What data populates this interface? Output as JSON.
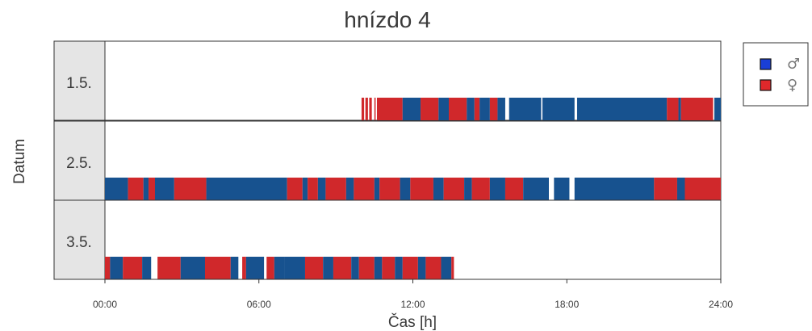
{
  "chart_data": {
    "type": "timeline",
    "title": "hnízdo 4",
    "xlabel": "Čas [h]",
    "ylabel": "Datum",
    "x_unit": "hours",
    "xlim": [
      0,
      24
    ],
    "x_ticks": [
      {
        "value": 0,
        "label": "00:00"
      },
      {
        "value": 6,
        "label": "06:00"
      },
      {
        "value": 12,
        "label": "12:00"
      },
      {
        "value": 18,
        "label": "18:00"
      },
      {
        "value": 24,
        "label": "24:00"
      }
    ],
    "legend_position": "top-right",
    "series": [
      {
        "key": "male",
        "legend_label": "♂",
        "color": "#17528f",
        "legend_color": "#1a3fd6"
      },
      {
        "key": "female",
        "legend_label": "♀",
        "color": "#d0282b",
        "legend_color": "#e0282b"
      }
    ],
    "rows": [
      {
        "label": "1.5.",
        "segments": [
          {
            "start": 10.0,
            "end": 10.1,
            "series": "female"
          },
          {
            "start": 10.15,
            "end": 10.25,
            "series": "female"
          },
          {
            "start": 10.3,
            "end": 10.4,
            "series": "female"
          },
          {
            "start": 10.5,
            "end": 10.55,
            "series": "female"
          },
          {
            "start": 10.6,
            "end": 11.6,
            "series": "female"
          },
          {
            "start": 11.6,
            "end": 12.3,
            "series": "male"
          },
          {
            "start": 12.3,
            "end": 13.0,
            "series": "female"
          },
          {
            "start": 13.0,
            "end": 13.4,
            "series": "male"
          },
          {
            "start": 13.4,
            "end": 14.1,
            "series": "female"
          },
          {
            "start": 14.1,
            "end": 14.4,
            "series": "male"
          },
          {
            "start": 14.4,
            "end": 14.6,
            "series": "female"
          },
          {
            "start": 14.6,
            "end": 15.0,
            "series": "male"
          },
          {
            "start": 15.0,
            "end": 15.3,
            "series": "female"
          },
          {
            "start": 15.3,
            "end": 15.6,
            "series": "male"
          },
          {
            "start": 15.75,
            "end": 17.0,
            "series": "male"
          },
          {
            "start": 17.05,
            "end": 18.3,
            "series": "male"
          },
          {
            "start": 18.4,
            "end": 21.9,
            "series": "male"
          },
          {
            "start": 21.9,
            "end": 22.35,
            "series": "female"
          },
          {
            "start": 22.35,
            "end": 22.45,
            "series": "male"
          },
          {
            "start": 22.45,
            "end": 23.7,
            "series": "female"
          },
          {
            "start": 23.75,
            "end": 24.0,
            "series": "male"
          }
        ]
      },
      {
        "label": "2.5.",
        "segments": [
          {
            "start": 0.0,
            "end": 0.9,
            "series": "male"
          },
          {
            "start": 0.9,
            "end": 1.5,
            "series": "female"
          },
          {
            "start": 1.5,
            "end": 1.7,
            "series": "male"
          },
          {
            "start": 1.7,
            "end": 1.95,
            "series": "female"
          },
          {
            "start": 1.95,
            "end": 2.7,
            "series": "male"
          },
          {
            "start": 2.7,
            "end": 3.95,
            "series": "female"
          },
          {
            "start": 3.95,
            "end": 7.1,
            "series": "male"
          },
          {
            "start": 7.1,
            "end": 7.7,
            "series": "female"
          },
          {
            "start": 7.7,
            "end": 7.9,
            "series": "male"
          },
          {
            "start": 7.9,
            "end": 8.3,
            "series": "female"
          },
          {
            "start": 8.3,
            "end": 8.6,
            "series": "male"
          },
          {
            "start": 8.6,
            "end": 9.4,
            "series": "female"
          },
          {
            "start": 9.4,
            "end": 9.7,
            "series": "male"
          },
          {
            "start": 9.7,
            "end": 10.5,
            "series": "female"
          },
          {
            "start": 10.5,
            "end": 10.7,
            "series": "male"
          },
          {
            "start": 10.7,
            "end": 11.5,
            "series": "female"
          },
          {
            "start": 11.5,
            "end": 11.9,
            "series": "male"
          },
          {
            "start": 11.9,
            "end": 12.8,
            "series": "female"
          },
          {
            "start": 12.8,
            "end": 13.2,
            "series": "male"
          },
          {
            "start": 13.2,
            "end": 14.0,
            "series": "female"
          },
          {
            "start": 14.0,
            "end": 14.3,
            "series": "male"
          },
          {
            "start": 14.3,
            "end": 15.0,
            "series": "female"
          },
          {
            "start": 15.0,
            "end": 15.6,
            "series": "male"
          },
          {
            "start": 15.6,
            "end": 16.3,
            "series": "female"
          },
          {
            "start": 16.3,
            "end": 17.3,
            "series": "male"
          },
          {
            "start": 17.5,
            "end": 18.1,
            "series": "male"
          },
          {
            "start": 18.3,
            "end": 21.4,
            "series": "male"
          },
          {
            "start": 21.4,
            "end": 22.3,
            "series": "female"
          },
          {
            "start": 22.3,
            "end": 22.6,
            "series": "male"
          },
          {
            "start": 22.6,
            "end": 24.0,
            "series": "female"
          }
        ]
      },
      {
        "label": "3.5.",
        "segments": [
          {
            "start": 0.0,
            "end": 0.2,
            "series": "female"
          },
          {
            "start": 0.2,
            "end": 0.7,
            "series": "male"
          },
          {
            "start": 0.7,
            "end": 1.45,
            "series": "female"
          },
          {
            "start": 1.45,
            "end": 1.8,
            "series": "male"
          },
          {
            "start": 2.05,
            "end": 2.95,
            "series": "female"
          },
          {
            "start": 2.95,
            "end": 3.9,
            "series": "male"
          },
          {
            "start": 3.9,
            "end": 4.9,
            "series": "female"
          },
          {
            "start": 4.9,
            "end": 5.2,
            "series": "male"
          },
          {
            "start": 5.35,
            "end": 5.5,
            "series": "female"
          },
          {
            "start": 5.5,
            "end": 6.2,
            "series": "male"
          },
          {
            "start": 6.3,
            "end": 6.6,
            "series": "female"
          },
          {
            "start": 6.6,
            "end": 7.0,
            "series": "male"
          },
          {
            "start": 7.0,
            "end": 7.8,
            "series": "male"
          },
          {
            "start": 7.8,
            "end": 8.5,
            "series": "female"
          },
          {
            "start": 8.5,
            "end": 8.9,
            "series": "male"
          },
          {
            "start": 8.9,
            "end": 9.6,
            "series": "female"
          },
          {
            "start": 9.6,
            "end": 9.9,
            "series": "male"
          },
          {
            "start": 9.9,
            "end": 10.5,
            "series": "female"
          },
          {
            "start": 10.5,
            "end": 10.8,
            "series": "male"
          },
          {
            "start": 10.8,
            "end": 11.3,
            "series": "female"
          },
          {
            "start": 11.3,
            "end": 11.6,
            "series": "male"
          },
          {
            "start": 11.6,
            "end": 12.2,
            "series": "female"
          },
          {
            "start": 12.2,
            "end": 12.5,
            "series": "male"
          },
          {
            "start": 12.5,
            "end": 13.1,
            "series": "female"
          },
          {
            "start": 13.1,
            "end": 13.5,
            "series": "male"
          },
          {
            "start": 13.5,
            "end": 13.6,
            "series": "female"
          }
        ]
      }
    ]
  }
}
